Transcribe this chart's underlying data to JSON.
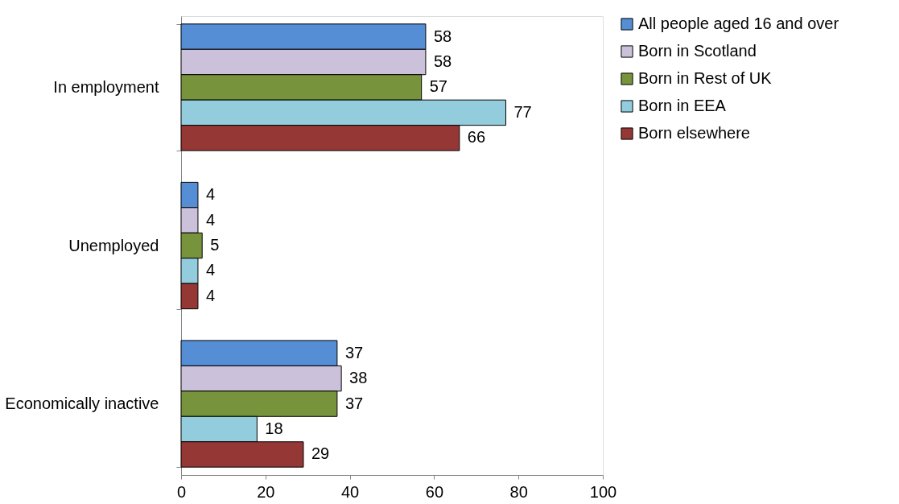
{
  "chart_data": {
    "type": "bar",
    "orientation": "horizontal",
    "categories": [
      "In employment",
      "Unemployed",
      "Economically inactive"
    ],
    "series": [
      {
        "name": "All people aged 16 and over",
        "color": "#558ed5",
        "values": [
          58,
          4,
          37
        ]
      },
      {
        "name": "Born in Scotland",
        "color": "#ccc1da",
        "values": [
          58,
          4,
          38
        ]
      },
      {
        "name": "Born in Rest of UK",
        "color": "#77933c",
        "values": [
          57,
          5,
          37
        ]
      },
      {
        "name": "Born in EEA",
        "color": "#93cddd",
        "values": [
          77,
          4,
          18
        ]
      },
      {
        "name": "Born elsewhere",
        "color": "#953735",
        "values": [
          66,
          4,
          29
        ]
      }
    ],
    "xlim": [
      0,
      100
    ],
    "xticks": [
      0,
      20,
      40,
      60,
      80,
      100
    ],
    "data_labels": true,
    "legend": "right",
    "grid": false
  }
}
